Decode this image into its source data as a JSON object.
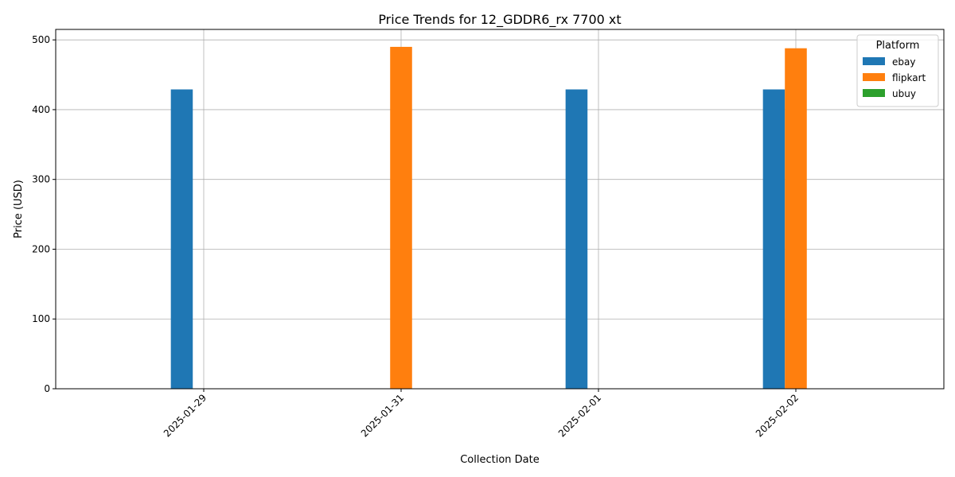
{
  "chart_data": {
    "type": "bar",
    "title": "Price Trends for 12_GDDR6_rx 7700 xt",
    "xlabel": "Collection Date",
    "ylabel": "Price (USD)",
    "categories": [
      "2025-01-29",
      "2025-01-31",
      "2025-02-01",
      "2025-02-02"
    ],
    "series": [
      {
        "name": "ebay",
        "color": "#1f77b4",
        "values": [
          429,
          null,
          429,
          429
        ]
      },
      {
        "name": "flipkart",
        "color": "#ff7f0e",
        "values": [
          null,
          490,
          null,
          488
        ]
      },
      {
        "name": "ubuy",
        "color": "#2ca02c",
        "values": [
          null,
          null,
          null,
          null
        ]
      }
    ],
    "ylim": [
      0,
      515
    ],
    "yticks": [
      0,
      100,
      200,
      300,
      400,
      500
    ],
    "grid": true,
    "legend": {
      "title": "Platform",
      "placement": "top-right"
    }
  }
}
